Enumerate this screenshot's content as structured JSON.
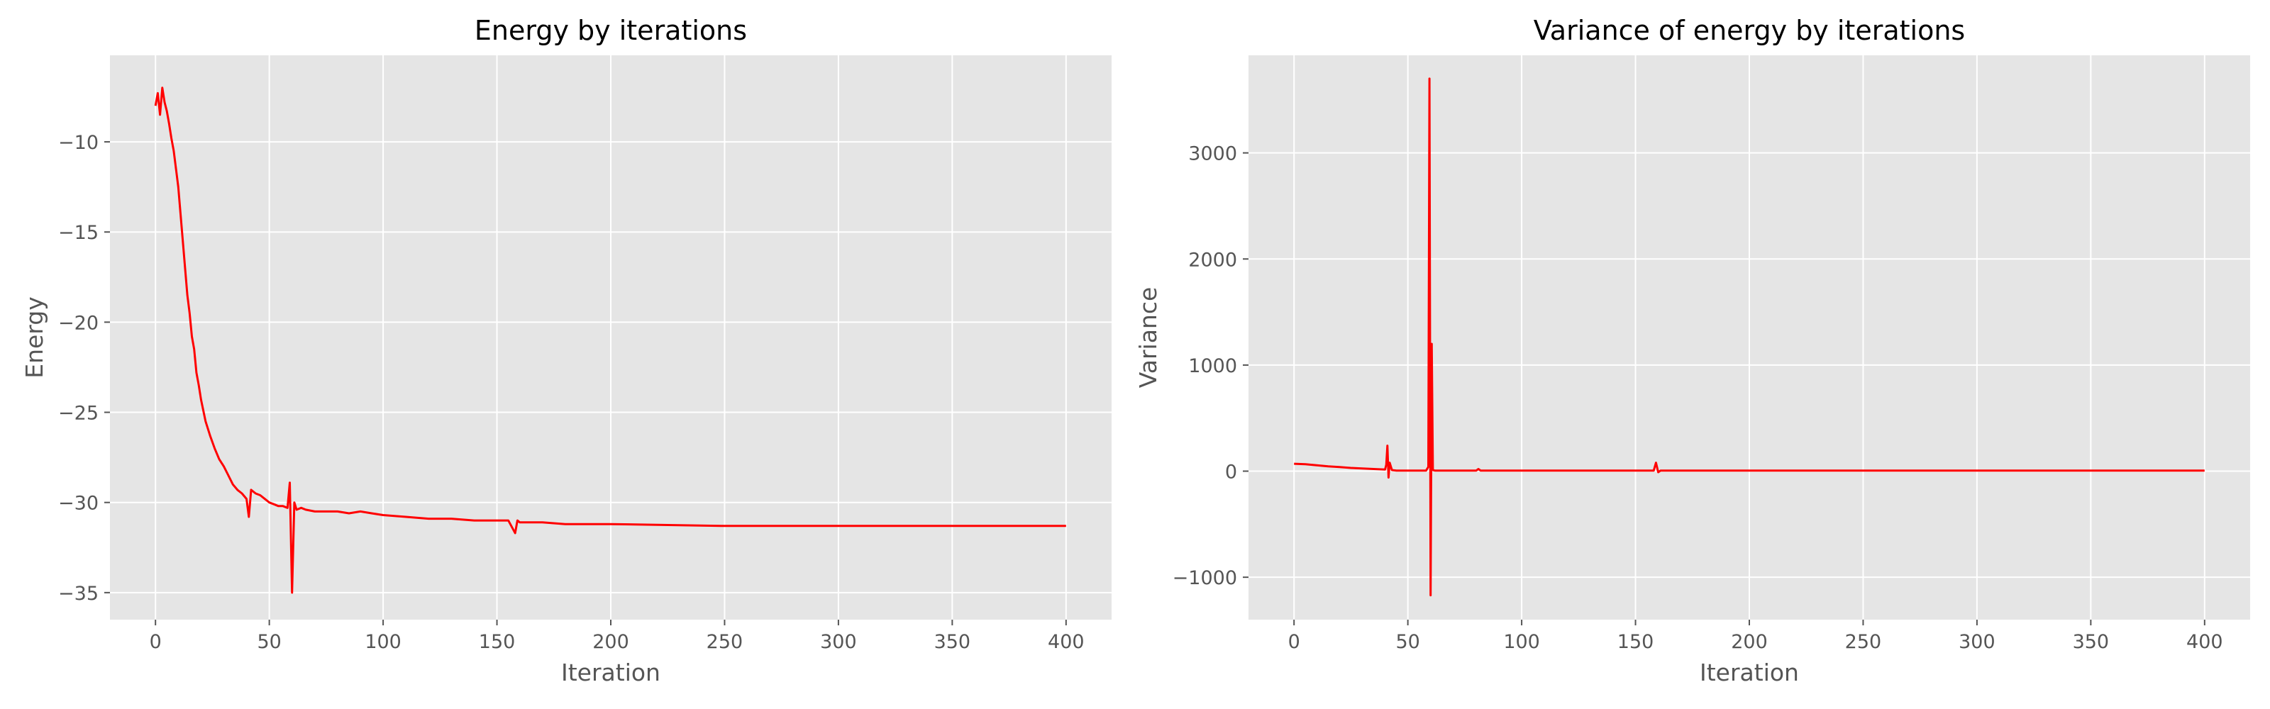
{
  "chart_data": [
    {
      "type": "line",
      "title": "Energy by iterations",
      "xlabel": "Iteration",
      "ylabel": "Energy",
      "xlim": [
        -20,
        420
      ],
      "ylim": [
        -36.5,
        -5.2
      ],
      "xticks": [
        0,
        50,
        100,
        150,
        200,
        250,
        300,
        350,
        400
      ],
      "yticks": [
        -35,
        -30,
        -25,
        -20,
        -15,
        -10
      ],
      "xtick_labels": [
        "0",
        "50",
        "100",
        "150",
        "200",
        "250",
        "300",
        "350",
        "400"
      ],
      "ytick_labels": [
        "−35",
        "−30",
        "−25",
        "−20",
        "−15",
        "−10"
      ],
      "grid": true,
      "line_color": "#ff0000",
      "background": "#e5e5e5",
      "series": [
        {
          "x": [
            0,
            1,
            2,
            3,
            4,
            5,
            6,
            7,
            8,
            9,
            10,
            11,
            12,
            13,
            14,
            15,
            16,
            17,
            18,
            19,
            20,
            22,
            24,
            26,
            28,
            30,
            32,
            34,
            36,
            38,
            40,
            41,
            42,
            44,
            46,
            48,
            50,
            52,
            54,
            56,
            58,
            59,
            60,
            61,
            62,
            64,
            66,
            70,
            75,
            80,
            85,
            90,
            95,
            100,
            110,
            120,
            130,
            140,
            150,
            155,
            158,
            159,
            160,
            170,
            180,
            200,
            250,
            300,
            350,
            400
          ],
          "y": [
            -8.0,
            -7.3,
            -8.5,
            -7.0,
            -7.8,
            -8.3,
            -9.0,
            -9.8,
            -10.5,
            -11.5,
            -12.5,
            -14.0,
            -15.5,
            -17.0,
            -18.5,
            -19.5,
            -20.8,
            -21.5,
            -22.8,
            -23.5,
            -24.3,
            -25.5,
            -26.3,
            -27.0,
            -27.6,
            -28.0,
            -28.5,
            -29.0,
            -29.3,
            -29.5,
            -29.8,
            -30.8,
            -29.3,
            -29.5,
            -29.6,
            -29.8,
            -30.0,
            -30.1,
            -30.2,
            -30.2,
            -30.3,
            -28.9,
            -35.0,
            -30.0,
            -30.4,
            -30.3,
            -30.4,
            -30.5,
            -30.5,
            -30.5,
            -30.6,
            -30.5,
            -30.6,
            -30.7,
            -30.8,
            -30.9,
            -30.9,
            -31.0,
            -31.0,
            -31.0,
            -31.7,
            -31.0,
            -31.1,
            -31.1,
            -31.2,
            -31.2,
            -31.3,
            -31.3,
            -31.3,
            -31.3
          ]
        }
      ]
    },
    {
      "type": "line",
      "title": "Variance of energy by iterations",
      "xlabel": "Iteration",
      "ylabel": "Variance",
      "xlim": [
        -20,
        420
      ],
      "ylim": [
        -1400,
        3920
      ],
      "xticks": [
        0,
        50,
        100,
        150,
        200,
        250,
        300,
        350,
        400
      ],
      "yticks": [
        -1000,
        0,
        1000,
        2000,
        3000
      ],
      "xtick_labels": [
        "0",
        "50",
        "100",
        "150",
        "200",
        "250",
        "300",
        "350",
        "400"
      ],
      "ytick_labels": [
        "−1000",
        "0",
        "1000",
        "2000",
        "3000"
      ],
      "grid": true,
      "line_color": "#ff0000",
      "background": "#e5e5e5",
      "series": [
        {
          "x": [
            0,
            5,
            10,
            15,
            20,
            25,
            30,
            35,
            40,
            40.5,
            41,
            41.5,
            42,
            43,
            45,
            50,
            55,
            58,
            59,
            59.5,
            60,
            60.5,
            61,
            62,
            65,
            70,
            80,
            81,
            82,
            100,
            150,
            158,
            159,
            160,
            161,
            200,
            250,
            300,
            350,
            400
          ],
          "y": [
            70,
            65,
            55,
            45,
            38,
            30,
            25,
            20,
            15,
            60,
            240,
            -60,
            80,
            10,
            5,
            5,
            5,
            5,
            40,
            3700,
            -1170,
            1200,
            10,
            5,
            5,
            5,
            5,
            20,
            5,
            5,
            5,
            5,
            80,
            -10,
            5,
            5,
            5,
            5,
            5,
            5
          ]
        }
      ]
    }
  ]
}
